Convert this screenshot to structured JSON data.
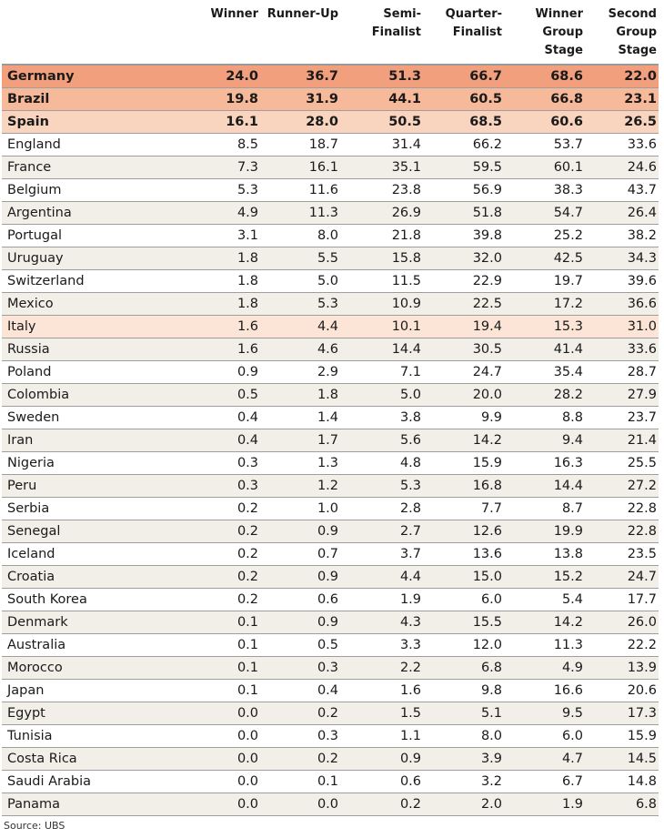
{
  "chart_data": {
    "type": "table",
    "columns": [
      "",
      "Winner",
      "Runner-Up",
      "Semi-\nFinalist",
      "Quarter-\nFinalist",
      "Winner\nGroup\nStage",
      "Second\nGroup\nStage"
    ],
    "rows": [
      {
        "team": "Germany",
        "values": [
          "24.0",
          "36.7",
          "51.3",
          "66.7",
          "68.6",
          "22.0"
        ],
        "highlight": "hl1"
      },
      {
        "team": "Brazil",
        "values": [
          "19.8",
          "31.9",
          "44.1",
          "60.5",
          "66.8",
          "23.1"
        ],
        "highlight": "hl2"
      },
      {
        "team": "Spain",
        "values": [
          "16.1",
          "28.0",
          "50.5",
          "68.5",
          "60.6",
          "26.5"
        ],
        "highlight": "hl3"
      },
      {
        "team": "England",
        "values": [
          "8.5",
          "18.7",
          "31.4",
          "66.2",
          "53.7",
          "33.6"
        ],
        "highlight": "even"
      },
      {
        "team": "France",
        "values": [
          "7.3",
          "16.1",
          "35.1",
          "59.5",
          "60.1",
          "24.6"
        ],
        "highlight": "odd"
      },
      {
        "team": "Belgium",
        "values": [
          "5.3",
          "11.6",
          "23.8",
          "56.9",
          "38.3",
          "43.7"
        ],
        "highlight": "even"
      },
      {
        "team": "Argentina",
        "values": [
          "4.9",
          "11.3",
          "26.9",
          "51.8",
          "54.7",
          "26.4"
        ],
        "highlight": "odd"
      },
      {
        "team": "Portugal",
        "values": [
          "3.1",
          "8.0",
          "21.8",
          "39.8",
          "25.2",
          "38.2"
        ],
        "highlight": "even"
      },
      {
        "team": "Uruguay",
        "values": [
          "1.8",
          "5.5",
          "15.8",
          "32.0",
          "42.5",
          "34.3"
        ],
        "highlight": "odd"
      },
      {
        "team": "Switzerland",
        "values": [
          "1.8",
          "5.0",
          "11.5",
          "22.9",
          "19.7",
          "39.6"
        ],
        "highlight": "even"
      },
      {
        "team": "Mexico",
        "values": [
          "1.8",
          "5.3",
          "10.9",
          "22.5",
          "17.2",
          "36.6"
        ],
        "highlight": "odd"
      },
      {
        "team": "Italy",
        "values": [
          "1.6",
          "4.4",
          "10.1",
          "19.4",
          "15.3",
          "31.0"
        ],
        "highlight": "hl4"
      },
      {
        "team": "Russia",
        "values": [
          "1.6",
          "4.6",
          "14.4",
          "30.5",
          "41.4",
          "33.6"
        ],
        "highlight": "odd"
      },
      {
        "team": "Poland",
        "values": [
          "0.9",
          "2.9",
          "7.1",
          "24.7",
          "35.4",
          "28.7"
        ],
        "highlight": "even"
      },
      {
        "team": "Colombia",
        "values": [
          "0.5",
          "1.8",
          "5.0",
          "20.0",
          "28.2",
          "27.9"
        ],
        "highlight": "odd"
      },
      {
        "team": "Sweden",
        "values": [
          "0.4",
          "1.4",
          "3.8",
          "9.9",
          "8.8",
          "23.7"
        ],
        "highlight": "even"
      },
      {
        "team": "Iran",
        "values": [
          "0.4",
          "1.7",
          "5.6",
          "14.2",
          "9.4",
          "21.4"
        ],
        "highlight": "odd"
      },
      {
        "team": "Nigeria",
        "values": [
          "0.3",
          "1.3",
          "4.8",
          "15.9",
          "16.3",
          "25.5"
        ],
        "highlight": "even"
      },
      {
        "team": "Peru",
        "values": [
          "0.3",
          "1.2",
          "5.3",
          "16.8",
          "14.4",
          "27.2"
        ],
        "highlight": "odd"
      },
      {
        "team": "Serbia",
        "values": [
          "0.2",
          "1.0",
          "2.8",
          "7.7",
          "8.7",
          "22.8"
        ],
        "highlight": "even"
      },
      {
        "team": "Senegal",
        "values": [
          "0.2",
          "0.9",
          "2.7",
          "12.6",
          "19.9",
          "22.8"
        ],
        "highlight": "odd"
      },
      {
        "team": "Iceland",
        "values": [
          "0.2",
          "0.7",
          "3.7",
          "13.6",
          "13.8",
          "23.5"
        ],
        "highlight": "even"
      },
      {
        "team": "Croatia",
        "values": [
          "0.2",
          "0.9",
          "4.4",
          "15.0",
          "15.2",
          "24.7"
        ],
        "highlight": "odd"
      },
      {
        "team": "South Korea",
        "values": [
          "0.2",
          "0.6",
          "1.9",
          "6.0",
          "5.4",
          "17.7"
        ],
        "highlight": "even"
      },
      {
        "team": "Denmark",
        "values": [
          "0.1",
          "0.9",
          "4.3",
          "15.5",
          "14.2",
          "26.0"
        ],
        "highlight": "odd"
      },
      {
        "team": "Australia",
        "values": [
          "0.1",
          "0.5",
          "3.3",
          "12.0",
          "11.3",
          "22.2"
        ],
        "highlight": "even"
      },
      {
        "team": "Morocco",
        "values": [
          "0.1",
          "0.3",
          "2.2",
          "6.8",
          "4.9",
          "13.9"
        ],
        "highlight": "odd"
      },
      {
        "team": "Japan",
        "values": [
          "0.1",
          "0.4",
          "1.6",
          "9.8",
          "16.6",
          "20.6"
        ],
        "highlight": "even"
      },
      {
        "team": "Egypt",
        "values": [
          "0.0",
          "0.2",
          "1.5",
          "5.1",
          "9.5",
          "17.3"
        ],
        "highlight": "odd"
      },
      {
        "team": "Tunisia",
        "values": [
          "0.0",
          "0.3",
          "1.1",
          "8.0",
          "6.0",
          "15.9"
        ],
        "highlight": "even"
      },
      {
        "team": "Costa Rica",
        "values": [
          "0.0",
          "0.2",
          "0.9",
          "3.9",
          "4.7",
          "14.5"
        ],
        "highlight": "odd"
      },
      {
        "team": "Saudi Arabia",
        "values": [
          "0.0",
          "0.1",
          "0.6",
          "3.2",
          "6.7",
          "14.8"
        ],
        "highlight": "even"
      },
      {
        "team": "Panama",
        "values": [
          "0.0",
          "0.0",
          "0.2",
          "2.0",
          "1.9",
          "6.8"
        ],
        "highlight": "odd"
      }
    ],
    "source": "Source: UBS"
  }
}
